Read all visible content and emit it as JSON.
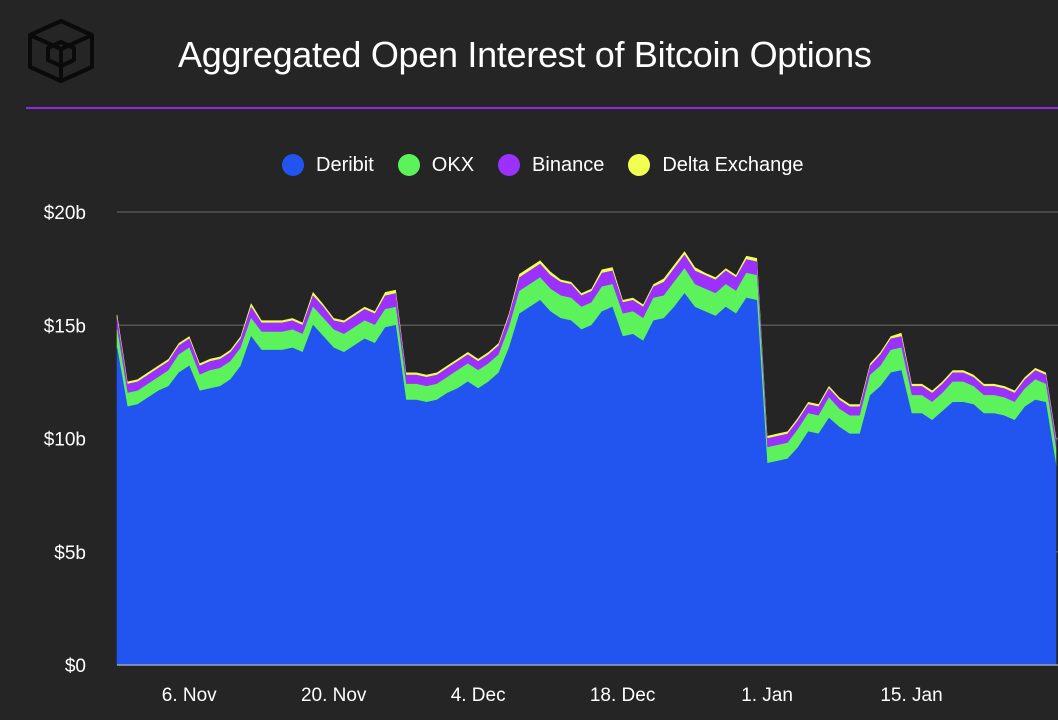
{
  "header": {
    "title": "Aggregated Open Interest of Bitcoin Options",
    "logo_icon": "cube-logo-icon"
  },
  "colors": {
    "background": "#252525",
    "accent_line": "#8a2be2",
    "gridline": "#555555"
  },
  "chart_data": {
    "type": "area",
    "stacked": true,
    "title": "Aggregated Open Interest of Bitcoin Options",
    "xlabel": "",
    "ylabel": "",
    "ylim": [
      0,
      20
    ],
    "y_unit": "billions USD",
    "grid": true,
    "legend_position": "top-center",
    "yticks": [
      {
        "value": 0,
        "label": "$0"
      },
      {
        "value": 5,
        "label": "$5b"
      },
      {
        "value": 10,
        "label": "$10b"
      },
      {
        "value": 15,
        "label": "$15b"
      },
      {
        "value": 20,
        "label": "$20b"
      }
    ],
    "xticks": [
      {
        "index": 7,
        "label": "6. Nov"
      },
      {
        "index": 21,
        "label": "20. Nov"
      },
      {
        "index": 35,
        "label": "4. Dec"
      },
      {
        "index": 49,
        "label": "18. Dec"
      },
      {
        "index": 63,
        "label": "1. Jan"
      },
      {
        "index": 77,
        "label": "15. Jan"
      }
    ],
    "series": [
      {
        "name": "Deribit",
        "color": "#2255f0",
        "values": [
          14.0,
          11.4,
          11.5,
          11.8,
          12.1,
          12.3,
          12.9,
          13.2,
          12.1,
          12.2,
          12.3,
          12.6,
          13.2,
          14.5,
          13.9,
          13.9,
          13.9,
          14.0,
          13.8,
          15.0,
          14.5,
          14.0,
          13.8,
          14.1,
          14.4,
          14.2,
          14.9,
          15.0,
          11.7,
          11.7,
          11.6,
          11.7,
          12.0,
          12.2,
          12.5,
          12.2,
          12.5,
          12.9,
          14.0,
          15.5,
          15.8,
          16.1,
          15.6,
          15.3,
          15.2,
          14.8,
          15.0,
          15.6,
          15.8,
          14.5,
          14.6,
          14.3,
          15.2,
          15.3,
          15.8,
          16.4,
          15.8,
          15.6,
          15.4,
          15.8,
          15.5,
          16.2,
          16.1,
          8.9,
          9.0,
          9.1,
          9.6,
          10.3,
          10.2,
          10.9,
          10.5,
          10.2,
          10.2,
          11.9,
          12.3,
          12.9,
          13.0,
          11.1,
          11.1,
          10.8,
          11.2,
          11.6,
          11.6,
          11.5,
          11.1,
          11.1,
          11.0,
          10.8,
          11.4,
          11.7,
          11.6,
          8.8
        ]
      },
      {
        "name": "OKX",
        "color": "#5cf25c",
        "values": [
          0.8,
          0.6,
          0.6,
          0.6,
          0.6,
          0.7,
          0.8,
          0.8,
          0.7,
          0.8,
          0.8,
          0.8,
          0.8,
          0.8,
          0.8,
          0.8,
          0.8,
          0.8,
          0.8,
          0.8,
          0.8,
          0.8,
          0.8,
          0.8,
          0.8,
          0.8,
          0.8,
          0.8,
          0.7,
          0.7,
          0.7,
          0.7,
          0.7,
          0.8,
          0.8,
          0.8,
          0.8,
          0.8,
          0.9,
          1.0,
          1.0,
          1.0,
          1.0,
          1.0,
          1.0,
          1.0,
          1.0,
          1.1,
          1.0,
          1.0,
          1.0,
          1.0,
          1.0,
          1.0,
          1.1,
          1.1,
          1.0,
          1.0,
          1.0,
          1.0,
          1.0,
          1.1,
          1.1,
          0.7,
          0.7,
          0.7,
          0.8,
          0.8,
          0.8,
          0.9,
          0.8,
          0.8,
          0.8,
          0.9,
          0.9,
          1.0,
          1.0,
          0.8,
          0.8,
          0.8,
          0.8,
          0.9,
          0.9,
          0.8,
          0.8,
          0.8,
          0.8,
          0.8,
          0.8,
          0.9,
          0.8,
          0.7
        ]
      },
      {
        "name": "Binance",
        "color": "#9b30ff",
        "values": [
          0.5,
          0.4,
          0.4,
          0.4,
          0.4,
          0.4,
          0.4,
          0.4,
          0.4,
          0.4,
          0.4,
          0.4,
          0.4,
          0.5,
          0.4,
          0.4,
          0.4,
          0.4,
          0.4,
          0.5,
          0.5,
          0.4,
          0.5,
          0.5,
          0.5,
          0.5,
          0.6,
          0.6,
          0.4,
          0.4,
          0.4,
          0.4,
          0.4,
          0.4,
          0.4,
          0.4,
          0.4,
          0.4,
          0.5,
          0.6,
          0.6,
          0.6,
          0.6,
          0.6,
          0.6,
          0.5,
          0.5,
          0.6,
          0.6,
          0.5,
          0.5,
          0.5,
          0.5,
          0.6,
          0.6,
          0.6,
          0.6,
          0.6,
          0.6,
          0.6,
          0.6,
          0.6,
          0.6,
          0.4,
          0.4,
          0.4,
          0.4,
          0.4,
          0.4,
          0.4,
          0.4,
          0.4,
          0.4,
          0.4,
          0.5,
          0.5,
          0.5,
          0.4,
          0.4,
          0.4,
          0.4,
          0.4,
          0.4,
          0.4,
          0.4,
          0.4,
          0.4,
          0.4,
          0.4,
          0.4,
          0.4,
          0.4
        ]
      },
      {
        "name": "Delta Exchange",
        "color": "#f0ff50",
        "values": [
          0.15,
          0.1,
          0.1,
          0.1,
          0.1,
          0.1,
          0.1,
          0.1,
          0.1,
          0.1,
          0.1,
          0.1,
          0.1,
          0.15,
          0.1,
          0.1,
          0.1,
          0.1,
          0.1,
          0.15,
          0.1,
          0.1,
          0.1,
          0.1,
          0.1,
          0.1,
          0.15,
          0.15,
          0.1,
          0.1,
          0.1,
          0.1,
          0.1,
          0.1,
          0.1,
          0.1,
          0.1,
          0.1,
          0.1,
          0.15,
          0.15,
          0.15,
          0.15,
          0.1,
          0.1,
          0.1,
          0.1,
          0.15,
          0.15,
          0.1,
          0.1,
          0.1,
          0.1,
          0.15,
          0.15,
          0.15,
          0.15,
          0.1,
          0.1,
          0.1,
          0.1,
          0.15,
          0.15,
          0.1,
          0.1,
          0.1,
          0.1,
          0.1,
          0.1,
          0.1,
          0.1,
          0.1,
          0.1,
          0.1,
          0.1,
          0.1,
          0.15,
          0.1,
          0.1,
          0.1,
          0.1,
          0.1,
          0.1,
          0.1,
          0.1,
          0.1,
          0.1,
          0.1,
          0.1,
          0.1,
          0.1,
          0.1
        ]
      }
    ]
  }
}
